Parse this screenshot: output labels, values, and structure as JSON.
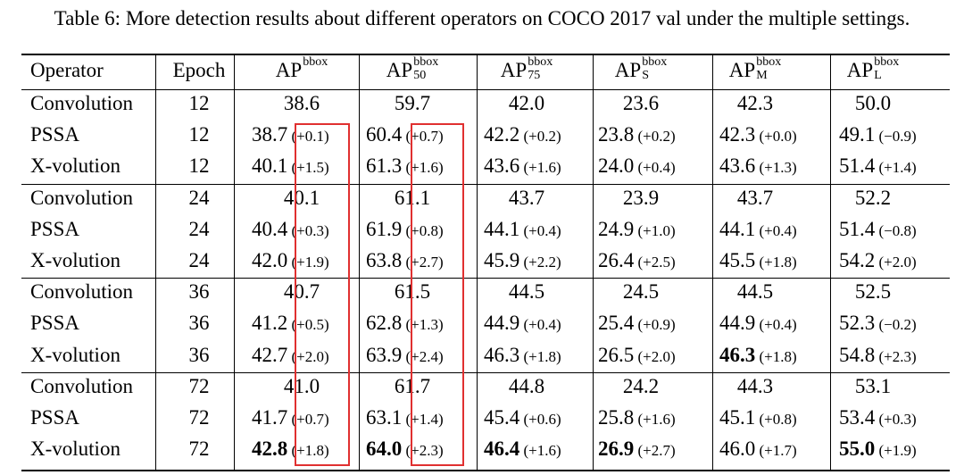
{
  "caption": "Table 6: More detection results about different operators on COCO 2017 val under the multiple settings.",
  "headers": {
    "operator": "Operator",
    "epoch": "Epoch",
    "ap": {
      "base": "AP",
      "sup": "bbox",
      "sub": ""
    },
    "ap50": {
      "base": "AP",
      "sup": "bbox",
      "sub": "50"
    },
    "ap75": {
      "base": "AP",
      "sup": "bbox",
      "sub": "75"
    },
    "aps": {
      "base": "AP",
      "sup": "bbox",
      "sub": "S"
    },
    "apm": {
      "base": "AP",
      "sup": "bbox",
      "sub": "M"
    },
    "apl": {
      "base": "AP",
      "sup": "bbox",
      "sub": "L"
    }
  },
  "groups": [
    {
      "rows": [
        {
          "op": "Convolution",
          "epoch": "12",
          "vals": [
            [
              "38.6",
              ""
            ],
            [
              "59.7",
              ""
            ],
            [
              "42.0",
              ""
            ],
            [
              "23.6",
              ""
            ],
            [
              "42.3",
              ""
            ],
            [
              "50.0",
              ""
            ]
          ],
          "bold": []
        },
        {
          "op": "PSSA",
          "epoch": "12",
          "vals": [
            [
              "38.7",
              "(+0.1)"
            ],
            [
              "60.4",
              "(+0.7)"
            ],
            [
              "42.2",
              "(+0.2)"
            ],
            [
              "23.8",
              "(+0.2)"
            ],
            [
              "42.3",
              "(+0.0)"
            ],
            [
              "49.1",
              "(−0.9)"
            ]
          ],
          "bold": []
        },
        {
          "op": "X-volution",
          "epoch": "12",
          "vals": [
            [
              "40.1",
              "(+1.5)"
            ],
            [
              "61.3",
              "(+1.6)"
            ],
            [
              "43.6",
              "(+1.6)"
            ],
            [
              "24.0",
              "(+0.4)"
            ],
            [
              "43.6",
              "(+1.3)"
            ],
            [
              "51.4",
              "(+1.4)"
            ]
          ],
          "bold": []
        }
      ]
    },
    {
      "rows": [
        {
          "op": "Convolution",
          "epoch": "24",
          "vals": [
            [
              "40.1",
              ""
            ],
            [
              "61.1",
              ""
            ],
            [
              "43.7",
              ""
            ],
            [
              "23.9",
              ""
            ],
            [
              "43.7",
              ""
            ],
            [
              "52.2",
              ""
            ]
          ],
          "bold": []
        },
        {
          "op": "PSSA",
          "epoch": "24",
          "vals": [
            [
              "40.4",
              "(+0.3)"
            ],
            [
              "61.9",
              "(+0.8)"
            ],
            [
              "44.1",
              "(+0.4)"
            ],
            [
              "24.9",
              "(+1.0)"
            ],
            [
              "44.1",
              "(+0.4)"
            ],
            [
              "51.4",
              "(−0.8)"
            ]
          ],
          "bold": []
        },
        {
          "op": "X-volution",
          "epoch": "24",
          "vals": [
            [
              "42.0",
              "(+1.9)"
            ],
            [
              "63.8",
              "(+2.7)"
            ],
            [
              "45.9",
              "(+2.2)"
            ],
            [
              "26.4",
              "(+2.5)"
            ],
            [
              "45.5",
              "(+1.8)"
            ],
            [
              "54.2",
              "(+2.0)"
            ]
          ],
          "bold": []
        }
      ]
    },
    {
      "rows": [
        {
          "op": "Convolution",
          "epoch": "36",
          "vals": [
            [
              "40.7",
              ""
            ],
            [
              "61.5",
              ""
            ],
            [
              "44.5",
              ""
            ],
            [
              "24.5",
              ""
            ],
            [
              "44.5",
              ""
            ],
            [
              "52.5",
              ""
            ]
          ],
          "bold": []
        },
        {
          "op": "PSSA",
          "epoch": "36",
          "vals": [
            [
              "41.2",
              "(+0.5)"
            ],
            [
              "62.8",
              "(+1.3)"
            ],
            [
              "44.9",
              "(+0.4)"
            ],
            [
              "25.4",
              "(+0.9)"
            ],
            [
              "44.9",
              "(+0.4)"
            ],
            [
              "52.3",
              "(−0.2)"
            ]
          ],
          "bold": []
        },
        {
          "op": "X-volution",
          "epoch": "36",
          "vals": [
            [
              "42.7",
              "(+2.0)"
            ],
            [
              "63.9",
              "(+2.4)"
            ],
            [
              "46.3",
              "(+1.8)"
            ],
            [
              "26.5",
              "(+2.0)"
            ],
            [
              "46.3",
              "(+1.8)"
            ],
            [
              "54.8",
              "(+2.3)"
            ]
          ],
          "bold": [
            4
          ]
        }
      ]
    },
    {
      "rows": [
        {
          "op": "Convolution",
          "epoch": "72",
          "vals": [
            [
              "41.0",
              ""
            ],
            [
              "61.7",
              ""
            ],
            [
              "44.8",
              ""
            ],
            [
              "24.2",
              ""
            ],
            [
              "44.3",
              ""
            ],
            [
              "53.1",
              ""
            ]
          ],
          "bold": []
        },
        {
          "op": "PSSA",
          "epoch": "72",
          "vals": [
            [
              "41.7",
              "(+0.7)"
            ],
            [
              "63.1",
              "(+1.4)"
            ],
            [
              "45.4",
              "(+0.6)"
            ],
            [
              "25.8",
              "(+1.6)"
            ],
            [
              "45.1",
              "(+0.8)"
            ],
            [
              "53.4",
              "(+0.3)"
            ]
          ],
          "bold": []
        },
        {
          "op": "X-volution",
          "epoch": "72",
          "vals": [
            [
              "42.8",
              "(+1.8)"
            ],
            [
              "64.0",
              "(+2.3)"
            ],
            [
              "46.4",
              "(+1.6)"
            ],
            [
              "26.9",
              "(+2.7)"
            ],
            [
              "46.0",
              "(+1.7)"
            ],
            [
              "55.0",
              "(+1.9)"
            ]
          ],
          "bold": [
            0,
            1,
            2,
            3,
            5
          ]
        }
      ]
    }
  ],
  "highlight_color": "#e03030"
}
